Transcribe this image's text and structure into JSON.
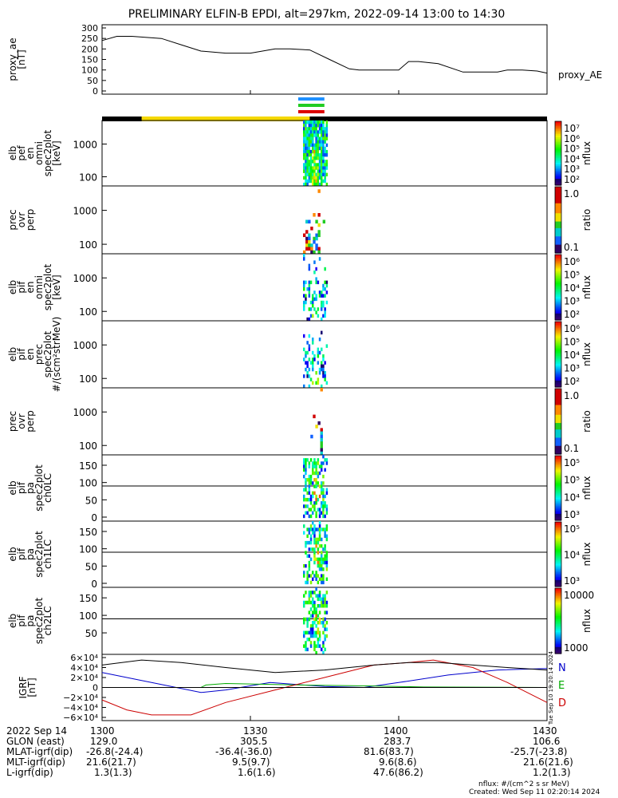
{
  "title": "PRELIMINARY ELFIN-B EPDI, alt=297km, 2022-09-14 13:00 to 14:30",
  "colors": {
    "nightside_bar": "#000000",
    "dayside_bar": "#f5d800",
    "sci_zone_blue": "#1e90ff",
    "sci_zone_green": "#22cc22",
    "sci_zone_red": "#dd0000",
    "N": "#0000cc",
    "E": "#00aa00",
    "D": "#cc0000"
  },
  "chart_data": {
    "type": "line",
    "time_axis": {
      "start": "13:00",
      "end": "14:30"
    },
    "panels": [
      {
        "id": "proxy_ae",
        "type": "line",
        "ylabel": "proxy_ae [nT]",
        "yticks": [
          "300",
          "250",
          "200",
          "150",
          "100",
          "50",
          "0"
        ],
        "ylim": [
          0,
          300
        ],
        "legend": "proxy_AE",
        "series": [
          {
            "name": "proxy_AE",
            "x_min": [
              0,
              3,
              6,
              12,
              16,
              20,
              25,
              30,
              35,
              38,
              42,
              46,
              50,
              52,
              55,
              58,
              60,
              62,
              64,
              68,
              73,
              80,
              82,
              85,
              88,
              90
            ],
            "y": [
              240,
              260,
              260,
              250,
              220,
              190,
              180,
              180,
              200,
              200,
              195,
              150,
              105,
              100,
              100,
              100,
              100,
              140,
              140,
              130,
              90,
              90,
              100,
              100,
              95,
              85
            ]
          }
        ]
      },
      {
        "id": "pef_en",
        "type": "heatmap",
        "ylabel": [
          "elb",
          "pef",
          "en",
          "omni",
          "spec2plot",
          "[keV]"
        ],
        "yticks": [
          "1000",
          "100"
        ],
        "colorbar_ticks": [
          "10⁷",
          "10⁶",
          "10⁵",
          "10⁴",
          "10³",
          "10²"
        ],
        "colorbar_label": "nflux"
      },
      {
        "id": "pef_ratio",
        "type": "heatmap",
        "ylabel": [
          "prec",
          "ovr",
          "perp"
        ],
        "yticks": [
          "1000",
          "100"
        ],
        "colorbar_ticks": [
          "1.0",
          "0.1"
        ],
        "colorbar_label": "ratio"
      },
      {
        "id": "pif_en",
        "type": "heatmap",
        "ylabel": [
          "elb",
          "pif",
          "en",
          "omni",
          "spec2plot",
          "[keV]"
        ],
        "yticks": [
          "1000",
          "100"
        ],
        "colorbar_ticks": [
          "10⁶",
          "10⁵",
          "10⁴",
          "10³",
          "10²"
        ],
        "colorbar_label": "nflux"
      },
      {
        "id": "pif_prec",
        "type": "heatmap",
        "ylabel": [
          "elb",
          "pif",
          "en",
          "prec",
          "spec2plot",
          "#/(scm²strMeV)"
        ],
        "yticks": [
          "1000",
          "100"
        ],
        "colorbar_ticks": [
          "10⁶",
          "10⁵",
          "10⁴",
          "10³",
          "10²"
        ],
        "colorbar_label": "nflux"
      },
      {
        "id": "pif_ratio",
        "type": "heatmap",
        "ylabel": [
          "prec",
          "ovr",
          "perp"
        ],
        "yticks": [
          "1000",
          "100"
        ],
        "colorbar_ticks": [
          "1.0",
          "0.1"
        ],
        "colorbar_label": "ratio"
      },
      {
        "id": "pa_ch0",
        "type": "heatmap",
        "ylabel": [
          "elb",
          "pif",
          "pa",
          "spec2plot",
          "ch0LC"
        ],
        "yticks": [
          "150",
          "100",
          "50",
          "0"
        ],
        "colorbar_ticks": [
          "10⁵",
          "10⁵",
          "10⁴",
          "10³"
        ],
        "colorbar_label": "nflux"
      },
      {
        "id": "pa_ch1",
        "type": "heatmap",
        "ylabel": [
          "elb",
          "pif",
          "pa",
          "spec2plot",
          "ch1LC"
        ],
        "yticks": [
          "150",
          "100",
          "50",
          "0"
        ],
        "colorbar_ticks": [
          "10⁵",
          "10⁴",
          "10³"
        ],
        "colorbar_label": "nflux"
      },
      {
        "id": "pa_ch2",
        "type": "heatmap",
        "ylabel": [
          "elb",
          "pif",
          "pa",
          "spec2plot",
          "ch2LC"
        ],
        "yticks": [
          "150",
          "100",
          "50"
        ],
        "colorbar_ticks": [
          "10000",
          "1000"
        ],
        "colorbar_label": "nflux"
      },
      {
        "id": "igrf",
        "type": "line",
        "ylabel": "IGRF [nT]",
        "yticks": [
          "6×10⁴",
          "4×10⁴",
          "2×10⁴",
          "0",
          "−2×10⁴",
          "−4×10⁴",
          "−6×10⁴"
        ],
        "ylim": [
          -60000,
          60000
        ],
        "legend": [
          "N",
          "E",
          "D"
        ],
        "series": [
          {
            "name": "N",
            "x_min": [
              0,
              10,
              20,
              25,
              34,
              45,
              53,
              60,
              70,
              80,
              90
            ],
            "y": [
              30000,
              10000,
              -10000,
              -5000,
              10000,
              2000,
              0,
              10000,
              25000,
              35000,
              38000
            ]
          },
          {
            "name": "E",
            "x_min": [
              0,
              20,
              21,
              25,
              40,
              55,
              65,
              90
            ],
            "y": [
              0,
              0,
              5000,
              8000,
              5000,
              3000,
              1000,
              0
            ]
          },
          {
            "name": "D",
            "x_min": [
              0,
              5,
              10,
              18,
              25,
              35,
              45,
              55,
              62,
              67,
              75,
              82,
              90
            ],
            "y": [
              -25000,
              -45000,
              -55000,
              -55000,
              -30000,
              -5000,
              20000,
              45000,
              50000,
              55000,
              40000,
              10000,
              -30000
            ]
          },
          {
            "name": "total",
            "x_min": [
              0,
              8,
              16,
              25,
              35,
              45,
              55,
              62,
              68,
              75,
              82,
              90
            ],
            "y": [
              45000,
              55000,
              50000,
              40000,
              30000,
              35000,
              45000,
              50000,
              50000,
              45000,
              40000,
              35000
            ]
          }
        ]
      }
    ],
    "orbit_bar": {
      "night_to_day_min": 8,
      "day_to_night_min": 42
    },
    "science_zone_min": [
      40,
      44
    ]
  },
  "igrf_labels": [
    "N",
    "E",
    "D"
  ],
  "timestamp_vertical": "Tue Sep 10 19:20:14 2024",
  "footer": {
    "rows": [
      {
        "label": "2022 Sep 14",
        "values": [
          "1300",
          "1330",
          "1400",
          "1430"
        ]
      },
      {
        "label": "GLON (east)",
        "values": [
          "129.0",
          "305.5",
          "283.7",
          "106.6"
        ]
      },
      {
        "label": "MLAT-igrf(dip)",
        "values": [
          "-26.8(-24.4)",
          "-36.4(-36.0)",
          "81.6(83.7)",
          "-25.7(-23.8)"
        ]
      },
      {
        "label": "MLT-igrf(dip)",
        "values": [
          "21.6(21.7)",
          "9.5(9.7)",
          "9.6(8.6)",
          "21.6(21.6)"
        ]
      },
      {
        "label": "L-igrf(dip)",
        "values": [
          "1.3(1.3)",
          "1.6(1.6)",
          "47.6(86.2)",
          "1.2(1.3)"
        ]
      }
    ],
    "nflux_note": "nflux: #/(cm^2 s sr MeV)",
    "created": "Created: Wed Sep 11 02:20:14 2024"
  }
}
